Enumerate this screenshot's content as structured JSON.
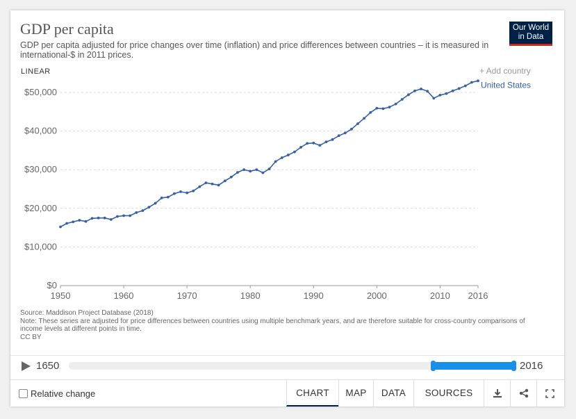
{
  "header": {
    "title": "GDP per capita",
    "subtitle": "GDP per capita adjusted for price changes over time (inflation) and price differences between countries – it is measured in international-$ in 2011 prices.",
    "logo_line1": "Our World",
    "logo_line2": "in Data"
  },
  "controls": {
    "scale": "LINEAR",
    "add_country": "+ Add country"
  },
  "chart_data": {
    "type": "line",
    "title": "GDP per capita",
    "xlabel": "",
    "ylabel": "",
    "xlim": [
      1950,
      2016
    ],
    "ylim": [
      0,
      52000
    ],
    "x_ticks": [
      1950,
      1960,
      1970,
      1980,
      1990,
      2000,
      2010,
      2016
    ],
    "x_tick_labels": [
      "1950",
      "1960",
      "1970",
      "1980",
      "1990",
      "2000",
      "2010",
      "2016"
    ],
    "y_ticks": [
      0,
      10000,
      20000,
      30000,
      40000,
      50000
    ],
    "y_tick_labels": [
      "$0",
      "$10,000",
      "$20,000",
      "$30,000",
      "$40,000",
      "$50,000"
    ],
    "series": [
      {
        "name": "United States",
        "color": "#3360a9",
        "x": [
          1950,
          1951,
          1952,
          1953,
          1954,
          1955,
          1956,
          1957,
          1958,
          1959,
          1960,
          1961,
          1962,
          1963,
          1964,
          1965,
          1966,
          1967,
          1968,
          1969,
          1970,
          1971,
          1972,
          1973,
          1974,
          1975,
          1976,
          1977,
          1978,
          1979,
          1980,
          1981,
          1982,
          1983,
          1984,
          1985,
          1986,
          1987,
          1988,
          1989,
          1990,
          1991,
          1992,
          1993,
          1994,
          1995,
          1996,
          1997,
          1998,
          1999,
          2000,
          2001,
          2002,
          2003,
          2004,
          2005,
          2006,
          2007,
          2008,
          2009,
          2010,
          2011,
          2012,
          2013,
          2014,
          2015,
          2016
        ],
        "values": [
          15200,
          16100,
          16500,
          16900,
          16600,
          17400,
          17500,
          17500,
          17100,
          17900,
          18100,
          18100,
          18900,
          19400,
          20300,
          21300,
          22700,
          22900,
          23800,
          24300,
          24000,
          24500,
          25600,
          26600,
          26300,
          26000,
          27100,
          28100,
          29300,
          30000,
          29600,
          30000,
          29200,
          30200,
          32100,
          33100,
          33800,
          34600,
          35800,
          36800,
          36900,
          36300,
          37200,
          37800,
          38800,
          39500,
          40500,
          41900,
          43300,
          44800,
          45900,
          45800,
          46200,
          47000,
          48200,
          49400,
          50400,
          50900,
          50300,
          48500,
          49300,
          49700,
          50400,
          51000,
          51700,
          52600,
          53000
        ]
      }
    ],
    "legend": "right"
  },
  "source": {
    "line1": "Source: Maddison Project Database (2018)",
    "line2": "Note: These series are adjusted for price differences between countries using multiple benchmark years, and are therefore suitable for cross-country comparisons of income levels at different points in time.",
    "line3": "CC BY"
  },
  "timeline": {
    "start_year": "1650",
    "end_year": "2016",
    "range_start_fraction": 0.817,
    "range_end_fraction": 1.0
  },
  "footer": {
    "relative_change": "Relative change",
    "tabs": [
      "CHART",
      "MAP",
      "DATA",
      "SOURCES"
    ],
    "active_tab": "CHART"
  }
}
